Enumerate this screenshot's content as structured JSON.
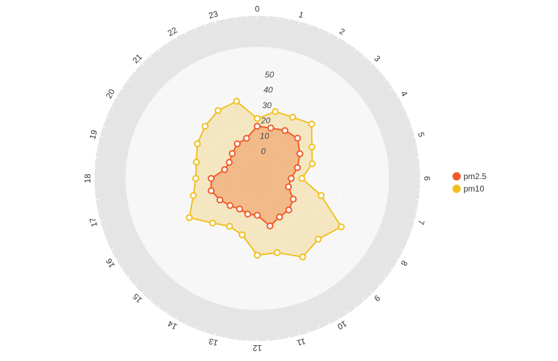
{
  "chart_data": {
    "type": "radar",
    "categories": [
      "0",
      "1",
      "2",
      "3",
      "4",
      "5",
      "6",
      "7",
      "8",
      "9",
      "10",
      "11",
      "12",
      "13",
      "14",
      "15",
      "16",
      "17",
      "18",
      "19",
      "20",
      "21",
      "22",
      "23"
    ],
    "radial_ticks": [
      "0",
      "10",
      "20",
      "30",
      "40",
      "50"
    ],
    "rlim": [
      -15,
      50
    ],
    "grid": "dotted circles",
    "legend_position": "right",
    "series": [
      {
        "name": "pm2.5",
        "color": "#f05a28",
        "values": [
          19,
          19,
          21,
          22,
          17,
          12,
          7,
          6,
          12,
          14,
          14,
          17,
          9,
          9,
          8,
          10,
          13,
          16,
          15,
          7,
          6,
          8,
          11,
          12
        ]
      },
      {
        "name": "pm10",
        "color": "#f0c020",
        "values": [
          24,
          30,
          31,
          35,
          26,
          22,
          14,
          28,
          48,
          41,
          44,
          35,
          35,
          23,
          21,
          26,
          36,
          28,
          25,
          26,
          30,
          33,
          36,
          37
        ]
      }
    ]
  }
}
